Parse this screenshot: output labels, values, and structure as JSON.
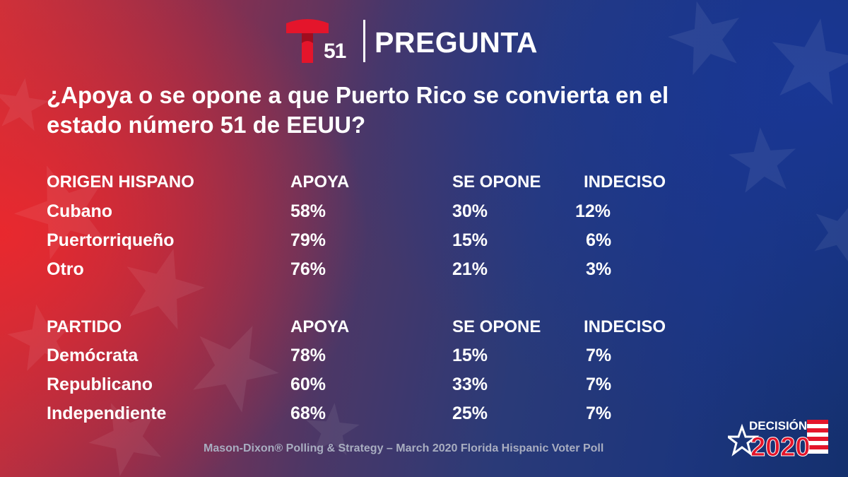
{
  "brand": {
    "logo_number": "51",
    "title": "PREGUNTA"
  },
  "question": "¿Apoya o se opone a que Puerto Rico se convierta en el estado número 51 de EEUU?",
  "chart_data": {
    "type": "table",
    "columns": [
      "APOYA",
      "SE OPONE",
      "INDECISO"
    ],
    "sections": [
      {
        "header": "ORIGEN HISPANO",
        "rows": [
          {
            "label": "Cubano",
            "values": [
              "58%",
              "30%",
              "12%"
            ]
          },
          {
            "label": "Puertorriqueño",
            "values": [
              "79%",
              "15%",
              "6%"
            ]
          },
          {
            "label": "Otro",
            "values": [
              "76%",
              "21%",
              "3%"
            ]
          }
        ]
      },
      {
        "header": "PARTIDO",
        "rows": [
          {
            "label": "Demócrata",
            "values": [
              "78%",
              "15%",
              "7%"
            ]
          },
          {
            "label": "Republicano",
            "values": [
              "60%",
              "33%",
              "7%"
            ]
          },
          {
            "label": "Independiente",
            "values": [
              "68%",
              "25%",
              "7%"
            ]
          }
        ]
      }
    ]
  },
  "source": "Mason-Dixon® Polling & Strategy – March 2020 Florida Hispanic Voter Poll",
  "badge": {
    "line1": "DECISIÓN",
    "line2": "2020"
  },
  "colors": {
    "logo_red": "#e4152b",
    "text": "#ffffff",
    "source_text": "#a8adc0"
  }
}
